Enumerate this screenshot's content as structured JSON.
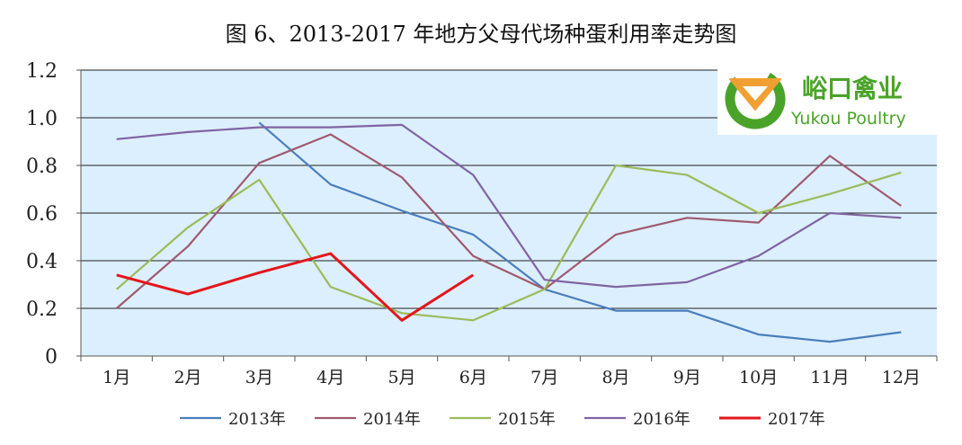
{
  "title": "图 6、2013-2017 年地方父母代场种蛋利用率走势图",
  "logo": {
    "cn": "峪口禽业",
    "en": "Yukou Poultry"
  },
  "colors": {
    "plot_bg": "#dcefff",
    "grid": "#222222"
  },
  "chart_data": {
    "type": "line",
    "categories": [
      "1月",
      "2月",
      "3月",
      "4月",
      "5月",
      "6月",
      "7月",
      "8月",
      "9月",
      "10月",
      "11月",
      "12月"
    ],
    "ylim": [
      0,
      1.2
    ],
    "yticks": [
      0,
      0.2,
      0.4,
      0.6,
      0.8,
      1.0,
      1.2
    ],
    "ytick_labels": [
      "0",
      "0.2",
      "0.4",
      "0.6",
      "0.8",
      "1.0",
      "1.2"
    ],
    "grid": true,
    "legend_position": "bottom",
    "series": [
      {
        "name": "2013年",
        "color": "#4a7ebb",
        "width": 2.2,
        "values": [
          null,
          null,
          0.98,
          0.72,
          0.61,
          0.51,
          0.28,
          0.19,
          0.19,
          0.09,
          0.06,
          0.1
        ]
      },
      {
        "name": "2014年",
        "color": "#a05a6e",
        "width": 2.2,
        "values": [
          0.2,
          0.46,
          0.81,
          0.93,
          0.75,
          0.42,
          0.28,
          0.51,
          0.58,
          0.56,
          0.84,
          0.63
        ]
      },
      {
        "name": "2015年",
        "color": "#9bbb59",
        "width": 2.2,
        "values": [
          0.28,
          0.54,
          0.74,
          0.29,
          0.18,
          0.15,
          0.28,
          0.8,
          0.76,
          0.6,
          0.68,
          0.77
        ]
      },
      {
        "name": "2016年",
        "color": "#8064a2",
        "width": 2.2,
        "values": [
          0.91,
          0.94,
          0.96,
          0.96,
          0.97,
          0.76,
          0.32,
          0.29,
          0.31,
          0.42,
          0.6,
          0.58
        ]
      },
      {
        "name": "2017年",
        "color": "#e3161b",
        "width": 3,
        "values": [
          0.34,
          0.26,
          0.35,
          0.43,
          0.15,
          0.34,
          null,
          null,
          null,
          null,
          null,
          null
        ]
      }
    ]
  }
}
